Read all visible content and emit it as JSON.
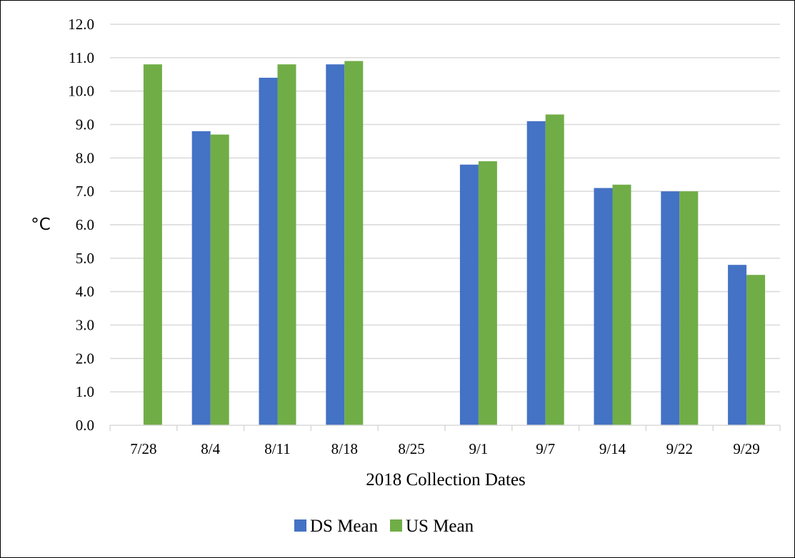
{
  "chart_data": {
    "type": "bar",
    "title": "",
    "xlabel": "2018 Collection Dates",
    "ylabel": "°C",
    "categories": [
      "7/28",
      "8/4",
      "8/11",
      "8/18",
      "8/25",
      "9/1",
      "9/7",
      "9/14",
      "9/22",
      "9/29"
    ],
    "series": [
      {
        "name": "DS Mean",
        "color": "#4472C4",
        "values": [
          null,
          8.8,
          10.4,
          10.8,
          null,
          7.8,
          9.1,
          7.1,
          7.0,
          4.8
        ]
      },
      {
        "name": "US Mean",
        "color": "#70AD47",
        "values": [
          10.8,
          8.7,
          10.8,
          10.9,
          null,
          7.9,
          9.3,
          7.2,
          7.0,
          4.5
        ]
      }
    ],
    "ylim": [
      0,
      12
    ],
    "yticks": [
      "0.0",
      "1.0",
      "2.0",
      "3.0",
      "4.0",
      "5.0",
      "6.0",
      "7.0",
      "8.0",
      "9.0",
      "10.0",
      "11.0",
      "12.0"
    ],
    "grid": true,
    "legend_position": "bottom",
    "gridline_color": "#D9D9D9"
  }
}
